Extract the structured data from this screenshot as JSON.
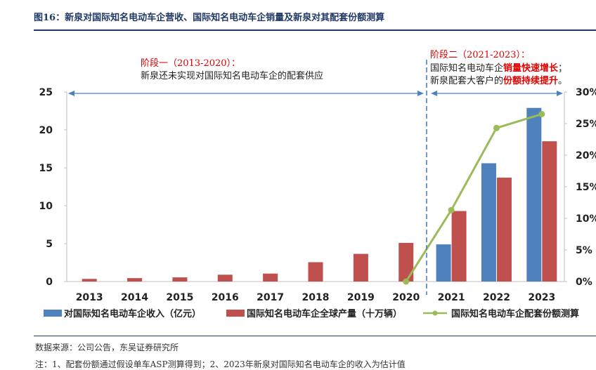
{
  "figure": {
    "title": "图16：新泉对国际知名电动车企营收、国际知名电动车企销量及新泉对其配套份额测算",
    "source": "数据来源：公司公告，东吴证券研究所",
    "note": "注：1、配套份额通过假设单车ASP测算得到；2、2023年新泉对国际知名电动车企的收入为估计值"
  },
  "annotations": {
    "phase1_title": "阶段一（2013-2020）：",
    "phase1_text": "新泉还未实现对国际知名电动车企的配套供应",
    "phase2_title": "阶段二（2021-2023）：",
    "phase2_line1_a": "国际知名电动车企",
    "phase2_line1_b": "销量快速增长",
    "phase2_line1_c": "；",
    "phase2_line2_a": "新泉配套大客户的",
    "phase2_line2_b": "份额持续提升",
    "phase2_line2_c": "。"
  },
  "chart_data": {
    "type": "bar",
    "categories": [
      "2013",
      "2014",
      "2015",
      "2016",
      "2017",
      "2018",
      "2019",
      "2020",
      "2021",
      "2022",
      "2023"
    ],
    "y_left": {
      "ticks": [
        "0",
        "5",
        "10",
        "15",
        "20",
        "25"
      ],
      "ylim": [
        0,
        25
      ]
    },
    "y_right": {
      "ticks": [
        "0%",
        "5%",
        "10%",
        "15%",
        "20%",
        "25%",
        "30%"
      ],
      "ylim": [
        0,
        0.3
      ]
    },
    "series": [
      {
        "name": "对国际知名电动车企收入（亿元）",
        "type": "bar",
        "axis": "left",
        "color": "#4f81bd",
        "values": [
          null,
          null,
          null,
          null,
          null,
          null,
          null,
          null,
          4.9,
          15.6,
          22.9
        ]
      },
      {
        "name": "国际知名电动车企全球产量（十万辆）",
        "type": "bar",
        "axis": "left",
        "color": "#c0504d",
        "values": [
          0.35,
          0.45,
          0.55,
          0.9,
          1.05,
          2.55,
          3.65,
          5.1,
          9.3,
          13.7,
          18.5
        ]
      },
      {
        "name": "国际知名电动车企配套份额测算",
        "type": "line",
        "axis": "right",
        "color": "#9bbb59",
        "values": [
          null,
          null,
          null,
          null,
          null,
          null,
          null,
          0.0,
          0.113,
          0.243,
          0.265
        ]
      }
    ],
    "legend_position": "bottom",
    "grid": false
  }
}
